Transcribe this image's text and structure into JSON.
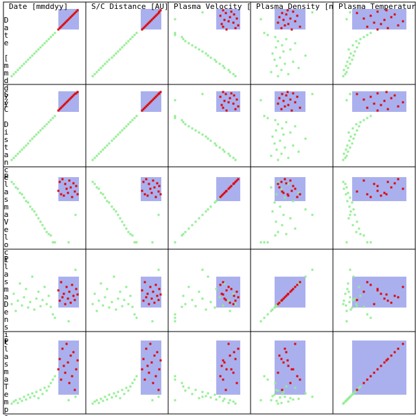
{
  "chart_data": {
    "type": "scatter-matrix",
    "columns": [
      "Date [mmddyy]",
      "S/C Distance [AU]",
      "Plasma Velocity [",
      "Plasma Density [n",
      "Plasma Temperatur"
    ],
    "row_labels": [
      "Date [mmddyy",
      "S/C Distance",
      "PlasmaVeloci",
      "PlasmaDensit",
      "PlasmaTemper"
    ],
    "lim": [
      0,
      1
    ],
    "brush": [
      [
        0.7,
        1
      ],
      [
        0.7,
        1
      ],
      [
        0.6,
        0.95
      ],
      [
        0.25,
        0.7
      ],
      [
        0.18,
        0.97
      ]
    ],
    "point_color": "#90ee90",
    "selected_color": "#e00000",
    "brush_color": "#aab0ee",
    "records": [
      [
        0.02,
        0.0,
        0.88,
        0.3,
        0.05
      ],
      [
        0.05,
        0.03,
        0.85,
        0.45,
        0.08
      ],
      [
        0.08,
        0.06,
        0.8,
        0.2,
        0.1
      ],
      [
        0.11,
        0.09,
        0.78,
        0.35,
        0.06
      ],
      [
        0.14,
        0.12,
        0.72,
        0.6,
        0.12
      ],
      [
        0.17,
        0.15,
        0.7,
        0.28,
        0.09
      ],
      [
        0.2,
        0.18,
        0.65,
        0.4,
        0.15
      ],
      [
        0.23,
        0.21,
        0.6,
        0.52,
        0.11
      ],
      [
        0.26,
        0.24,
        0.58,
        0.25,
        0.18
      ],
      [
        0.29,
        0.28,
        0.52,
        0.33,
        0.14
      ],
      [
        0.32,
        0.31,
        0.48,
        0.7,
        0.2
      ],
      [
        0.35,
        0.34,
        0.45,
        0.22,
        0.16
      ],
      [
        0.38,
        0.37,
        0.4,
        0.38,
        0.22
      ],
      [
        0.41,
        0.4,
        0.35,
        0.48,
        0.13
      ],
      [
        0.44,
        0.43,
        0.3,
        0.27,
        0.25
      ],
      [
        0.47,
        0.46,
        0.25,
        0.36,
        0.19
      ],
      [
        0.5,
        0.49,
        0.2,
        0.55,
        0.28
      ],
      [
        0.53,
        0.52,
        0.15,
        0.3,
        0.24
      ],
      [
        0.56,
        0.55,
        0.12,
        0.42,
        0.3
      ],
      [
        0.59,
        0.58,
        0.1,
        0.26,
        0.35
      ],
      [
        0.62,
        0.61,
        0.0,
        0.15,
        0.4
      ],
      [
        0.65,
        0.64,
        0.0,
        0.1,
        0.45
      ],
      [
        0.7,
        0.72,
        0.75,
        0.5,
        0.55
      ],
      [
        0.72,
        0.74,
        0.88,
        0.35,
        0.7
      ],
      [
        0.74,
        0.76,
        0.7,
        0.62,
        0.4
      ],
      [
        0.76,
        0.78,
        0.92,
        0.4,
        0.85
      ],
      [
        0.78,
        0.8,
        0.68,
        0.45,
        0.6
      ],
      [
        0.8,
        0.82,
        0.85,
        0.3,
        0.5
      ],
      [
        0.82,
        0.84,
        0.78,
        0.55,
        0.92
      ],
      [
        0.84,
        0.86,
        0.72,
        0.38,
        0.65
      ],
      [
        0.86,
        0.88,
        0.9,
        0.48,
        0.35
      ],
      [
        0.88,
        0.9,
        0.8,
        0.32,
        0.75
      ],
      [
        0.9,
        0.92,
        0.66,
        0.58,
        0.45
      ],
      [
        0.92,
        0.94,
        0.86,
        0.42,
        0.8
      ],
      [
        0.94,
        0.96,
        0.74,
        0.36,
        0.25
      ],
      [
        0.96,
        0.97,
        0.82,
        0.52,
        0.55
      ],
      [
        0.98,
        0.99,
        0.7,
        0.44,
        0.68
      ],
      [
        0.85,
        0.87,
        0.0,
        0.05,
        0.1
      ],
      [
        0.95,
        0.96,
        0.4,
        0.8,
        0.15
      ]
    ]
  }
}
